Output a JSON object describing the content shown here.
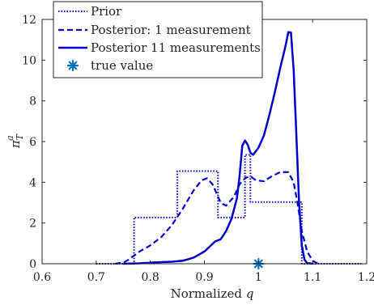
{
  "chart_data": {
    "type": "line",
    "xlabel": "Normalized",
    "xlabel_var": "q",
    "ylabel_base": "π",
    "ylabel_sub": "T",
    "ylabel_sup": "a",
    "xlim": [
      0.6,
      1.2
    ],
    "ylim": [
      0,
      12
    ],
    "xticks": [
      0.6,
      0.7,
      0.8,
      0.9,
      1.0,
      1.1,
      1.2
    ],
    "xtick_labels": [
      "0.6",
      "0.7",
      "0.8",
      "0.9",
      "1",
      "1.1",
      "1.2"
    ],
    "yticks": [
      0,
      2,
      4,
      6,
      8,
      10,
      12
    ],
    "ytick_labels": [
      "0",
      "2",
      "4",
      "6",
      "8",
      "10",
      "12"
    ],
    "grid": false,
    "legend_position": "top-left",
    "colors": {
      "line": "#0000cc",
      "marker": "#0072bd",
      "axis": "#262626"
    },
    "series": [
      {
        "name": "Prior",
        "style": "dotted",
        "x": [
          0.7,
          0.77,
          0.77,
          0.85,
          0.85,
          0.925,
          0.925,
          0.975,
          0.975,
          0.985,
          0.985,
          1.08,
          1.08,
          1.19
        ],
        "y": [
          0,
          0,
          2.27,
          2.27,
          4.55,
          4.55,
          2.27,
          2.27,
          5.35,
          5.35,
          3.03,
          3.03,
          0,
          0
        ]
      },
      {
        "name": "Posterior: 1 measurement",
        "style": "dashed",
        "x": [
          0.735,
          0.75,
          0.76,
          0.77,
          0.78,
          0.79,
          0.8,
          0.82,
          0.84,
          0.86,
          0.88,
          0.895,
          0.905,
          0.915,
          0.93,
          0.94,
          0.955,
          0.965,
          0.975,
          0.985,
          0.995,
          1.01,
          1.025,
          1.04,
          1.055,
          1.065,
          1.072,
          1.08,
          1.09,
          1.1,
          1.11
        ],
        "y": [
          0,
          0.05,
          0.2,
          0.4,
          0.6,
          0.75,
          0.9,
          1.3,
          1.9,
          2.7,
          3.6,
          4.1,
          4.2,
          3.9,
          3.0,
          2.85,
          3.3,
          3.9,
          4.2,
          4.3,
          4.1,
          4.05,
          4.3,
          4.5,
          4.5,
          4.0,
          3.0,
          1.6,
          0.6,
          0.15,
          0
        ]
      },
      {
        "name": "Posterior 11 measurements",
        "style": "solid",
        "x": [
          0.75,
          0.78,
          0.8,
          0.82,
          0.84,
          0.86,
          0.87,
          0.88,
          0.89,
          0.9,
          0.91,
          0.92,
          0.93,
          0.94,
          0.95,
          0.96,
          0.965,
          0.97,
          0.975,
          0.98,
          0.985,
          0.99,
          1.0,
          1.01,
          1.02,
          1.03,
          1.04,
          1.05,
          1.055,
          1.06,
          1.065,
          1.07,
          1.075,
          1.08,
          1.085,
          1.09,
          1.1
        ],
        "y": [
          0,
          0.02,
          0.05,
          0.08,
          0.1,
          0.15,
          0.22,
          0.3,
          0.45,
          0.6,
          0.85,
          1.1,
          1.2,
          1.6,
          2.2,
          3.2,
          4.3,
          5.8,
          6.05,
          5.85,
          5.45,
          5.35,
          5.7,
          6.3,
          7.3,
          8.4,
          9.6,
          10.7,
          11.38,
          11.35,
          9.5,
          6.3,
          3.0,
          0.9,
          0.2,
          0.03,
          0
        ]
      },
      {
        "name": "true value",
        "style": "marker",
        "x": [
          1.0
        ],
        "y": [
          0
        ]
      }
    ]
  }
}
